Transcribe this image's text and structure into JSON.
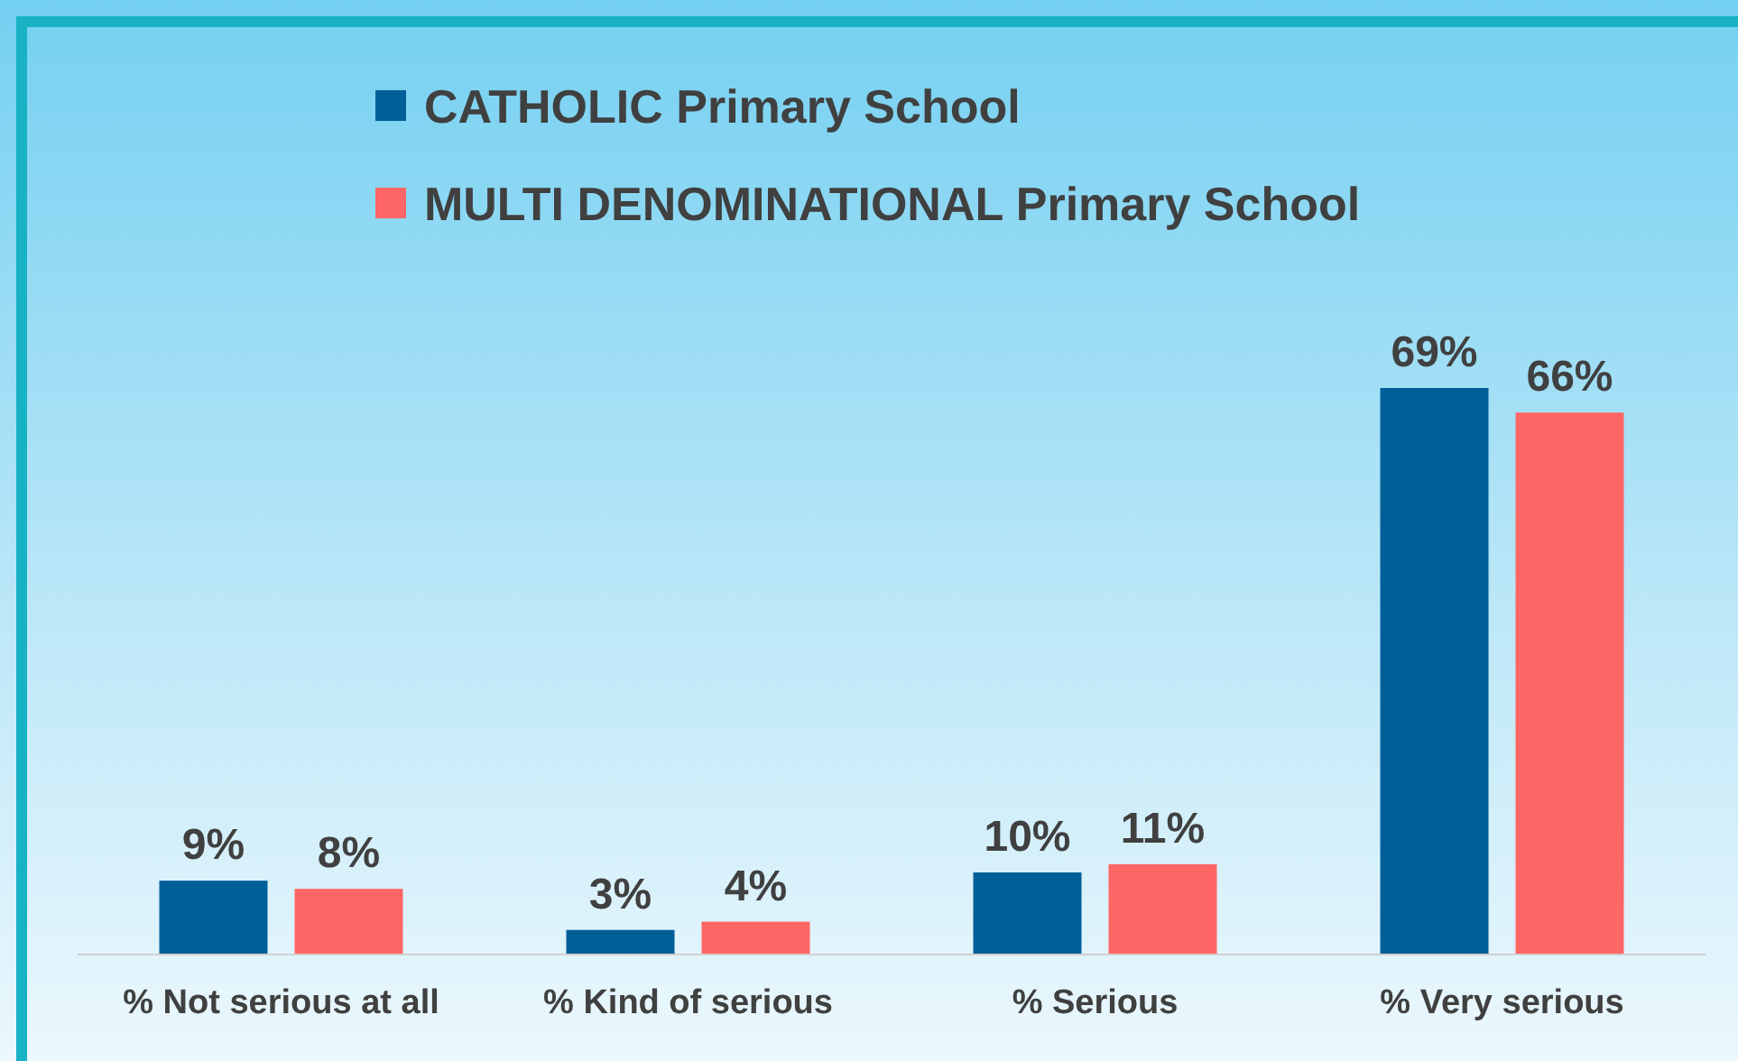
{
  "chart_data": {
    "type": "bar",
    "categories": [
      "% Not serious at all",
      "% Kind of serious",
      "% Serious",
      "% Very serious"
    ],
    "series": [
      {
        "name": "CATHOLIC Primary School",
        "color": "#005f99",
        "values": [
          9,
          3,
          10,
          69
        ],
        "value_labels": [
          "9%",
          "3%",
          "10%",
          "69%"
        ]
      },
      {
        "name": "MULTI DENOMINATIONAL Primary School",
        "color": "#ff6666",
        "values": [
          8,
          4,
          11,
          66
        ],
        "value_labels": [
          "8%",
          "4%",
          "11%",
          "66%"
        ]
      }
    ],
    "legend": "top left"
  }
}
